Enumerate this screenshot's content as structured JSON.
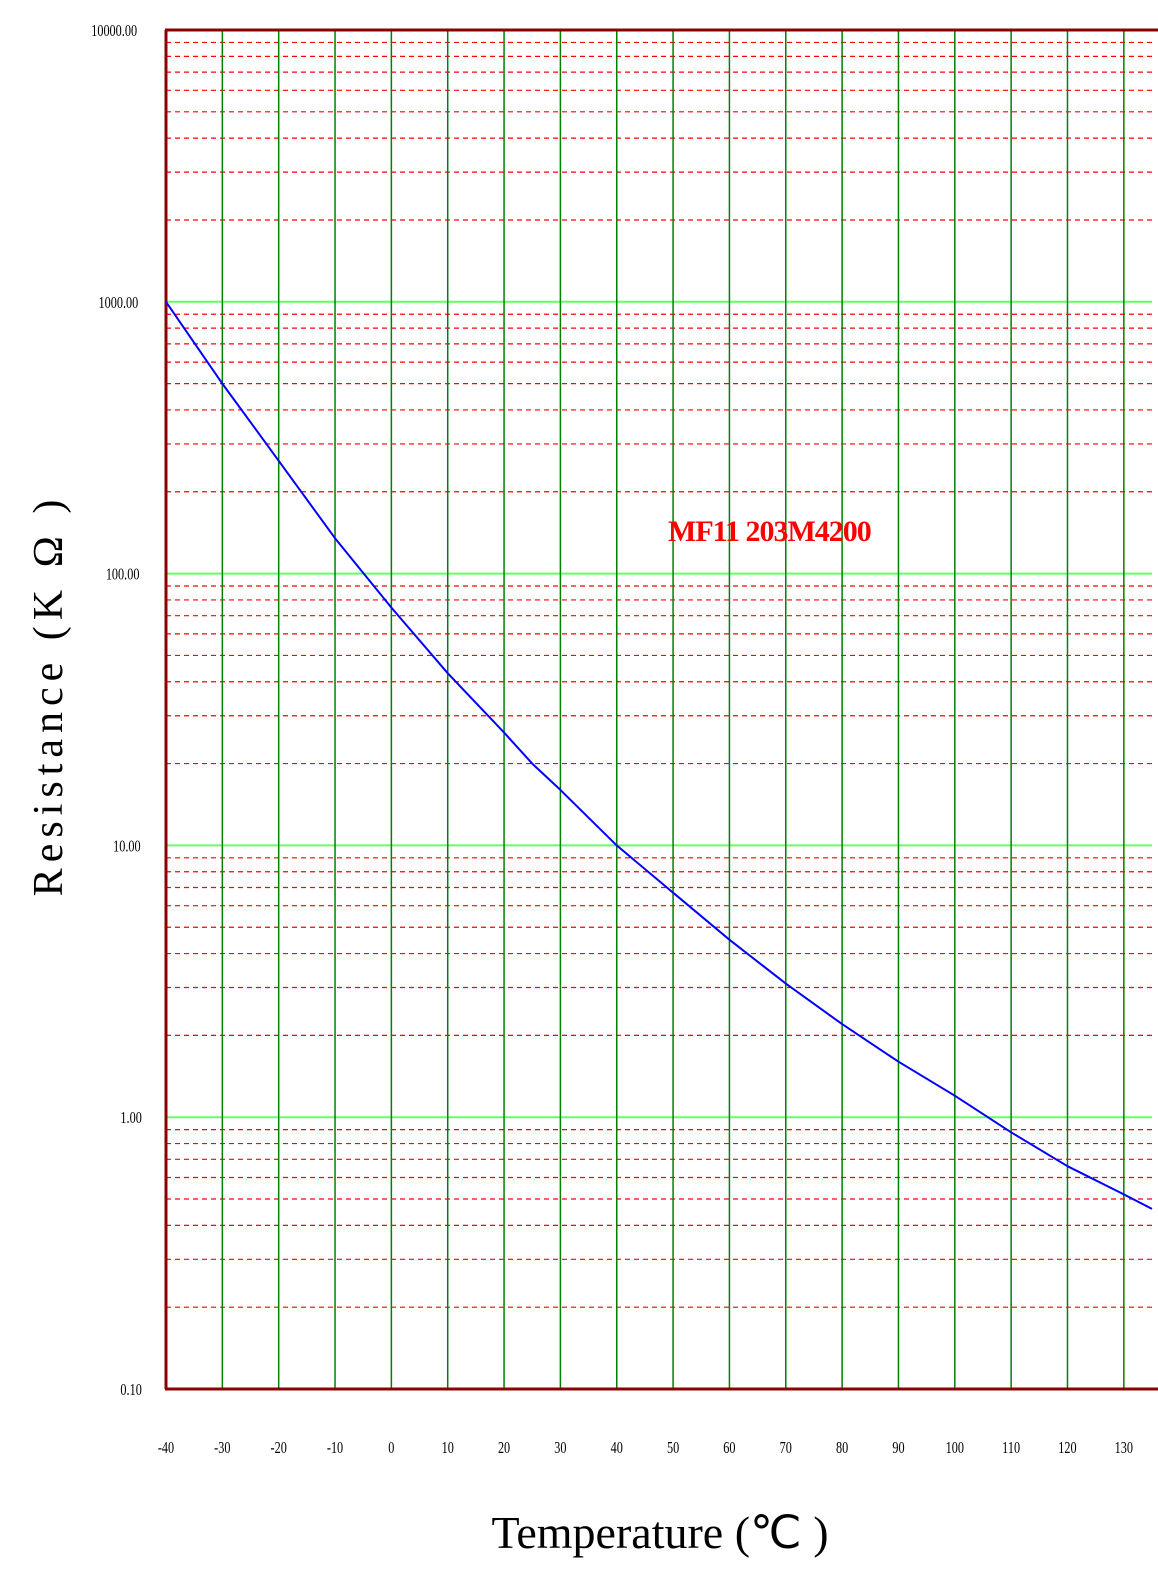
{
  "chart_data": {
    "type": "line",
    "title": "",
    "xlabel": "Temperature (℃ )",
    "ylabel": "Resistance (K Ω )",
    "yscale": "log",
    "xlim": [
      -40,
      135
    ],
    "ylim": [
      0.1,
      10000
    ],
    "x_ticks": [
      "-40",
      "-30",
      "-20",
      "-10",
      "0",
      "10",
      "20",
      "30",
      "40",
      "50",
      "60",
      "70",
      "80",
      "90",
      "100",
      "110",
      "120",
      "130"
    ],
    "y_ticks": [
      "0.10",
      "1.00",
      "10.00",
      "100.00",
      "1000.00",
      "10000.00"
    ],
    "grid": {
      "vertical_major": "on",
      "horizontal_decade": "on",
      "horizontal_minor_dashed": "on"
    },
    "annotation": "MF11 203M4200",
    "colors": {
      "curve": "#0000ff",
      "vertical_grid": "#008000",
      "decade_grid": "#66ff66",
      "minor_grid": "#ff0000",
      "frame": "#8b0000",
      "annotation": "#ff0000"
    },
    "series": [
      {
        "x": [
          -40,
          -30,
          -20,
          -10,
          0,
          10,
          20,
          25,
          30,
          40,
          50,
          60,
          70,
          80,
          90,
          100,
          110,
          120,
          130,
          135
        ],
        "y": [
          1000,
          500,
          260,
          135,
          75,
          43,
          26,
          20,
          16,
          10,
          6.7,
          4.5,
          3.1,
          2.2,
          1.6,
          1.2,
          0.88,
          0.66,
          0.52,
          0.46
        ]
      }
    ]
  }
}
